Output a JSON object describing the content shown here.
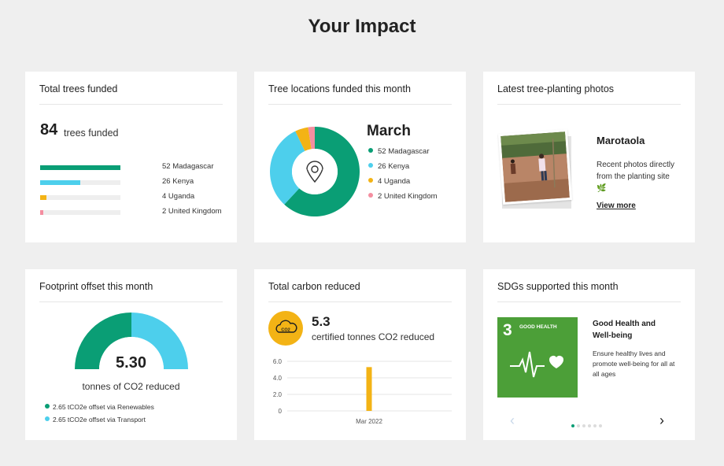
{
  "page": {
    "title": "Your Impact"
  },
  "colors": {
    "green": "#0a9e75",
    "cyan": "#4dcfec",
    "yellow": "#f3b315",
    "pink": "#f48ea0"
  },
  "trees": {
    "title": "Total trees funded",
    "count": "84",
    "count_unit": "trees funded",
    "rows": [
      {
        "label": "52  Madagascar",
        "value": 52,
        "color": "#0a9e75"
      },
      {
        "label": "26  Kenya",
        "value": 26,
        "color": "#4dcfec"
      },
      {
        "label": "4  Uganda",
        "value": 4,
        "color": "#f3b315"
      },
      {
        "label": "2 United Kingdom",
        "value": 2,
        "color": "#f48ea0"
      }
    ],
    "max": 52
  },
  "locations": {
    "title": "Tree locations funded this month",
    "month": "March",
    "icon": "map-pin-icon",
    "legend": [
      {
        "label": "52  Madagascar",
        "value": 52,
        "color": "#0a9e75"
      },
      {
        "label": "26  Kenya",
        "value": 26,
        "color": "#4dcfec"
      },
      {
        "label": "4  Uganda",
        "value": 4,
        "color": "#f3b315"
      },
      {
        "label": "2 United Kingdom",
        "value": 2,
        "color": "#f48ea0"
      }
    ]
  },
  "photos": {
    "title": "Latest tree-planting photos",
    "location": "Marotaola",
    "description": "Recent photos directly from the planting site",
    "leaf": "🌿",
    "link": "View more"
  },
  "footprint": {
    "title": "Footprint offset this month",
    "value": "5.30",
    "caption": "tonnes of CO2 reduced",
    "segments": [
      {
        "label": "2.65 tCO2e offset via Renewables",
        "value": 2.65,
        "color": "#0a9e75"
      },
      {
        "label": "2.65 tCO2e offset via Transport",
        "value": 2.65,
        "color": "#4dcfec"
      }
    ]
  },
  "carbon": {
    "title": "Total carbon reduced",
    "value": "5.3",
    "caption": "certified tonnes CO2 reduced",
    "icon": "co2-cloud-icon",
    "icon_text": "CO2",
    "chart": {
      "type": "bar",
      "categories": [
        "Mar 2022"
      ],
      "values": [
        5.3
      ],
      "ylim": [
        0,
        6.0
      ],
      "yticks": [
        "6.0",
        "4.0",
        "2.0",
        "0"
      ],
      "color": "#f3b315"
    }
  },
  "sdgs": {
    "title": "SDGs supported this month",
    "tile_number": "3",
    "tile_label": "GOOD HEALTH",
    "tile_color": "#4c9f38",
    "heading": "Good Health and Well-being",
    "description": "Ensure healthy lives and promote well-being for all at all ages",
    "prev": "‹",
    "next": "›",
    "page_count": 6,
    "active_page": 1
  }
}
